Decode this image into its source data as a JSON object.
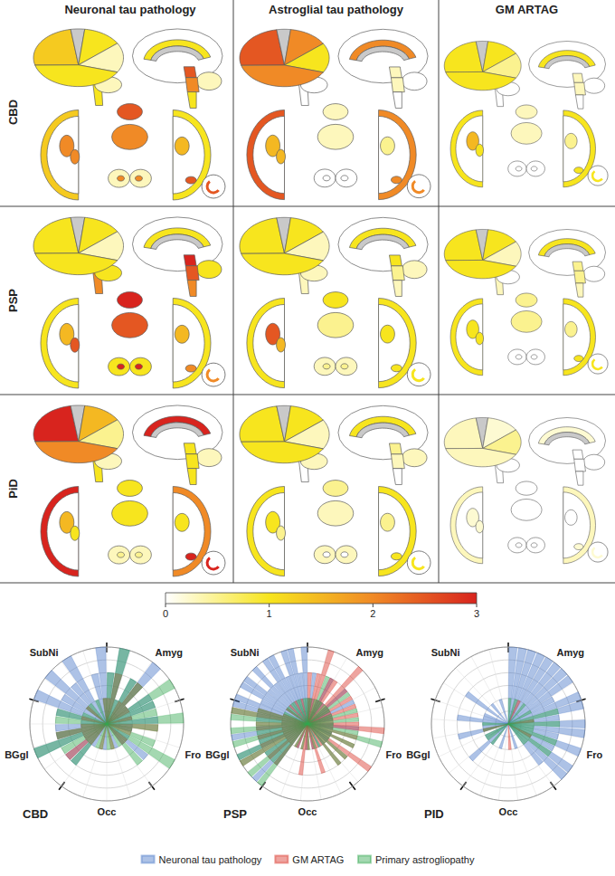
{
  "panel": {
    "row_labels": [
      "CBD",
      "PSP",
      "PiD"
    ],
    "column_labels": [
      "Neuronal tau pathology",
      "Astroglial tau pathology",
      "GM ARTAG"
    ],
    "cells": [
      [
        [
          1.3,
          1,
          1,
          0.3,
          1,
          2,
          2,
          1.5,
          2.5,
          2,
          1,
          0.3,
          2,
          2.5
        ],
        [
          2.5,
          2,
          2,
          1,
          2,
          1.5,
          1.5,
          0.5,
          0.3,
          0.3,
          0,
          0,
          0,
          2
        ],
        [
          1,
          1,
          1,
          0.5,
          1,
          1.5,
          1,
          0.5,
          0.3,
          0.3,
          0,
          0,
          0,
          1
        ]
      ],
      [
        [
          1,
          1,
          1,
          0.3,
          1,
          1.5,
          2.5,
          1.5,
          3,
          2.5,
          2,
          1,
          3,
          2
        ],
        [
          1,
          1,
          1,
          0.3,
          1,
          2.5,
          1.5,
          1,
          1,
          0.5,
          0.3,
          0.3,
          0.5,
          1
        ],
        [
          1,
          1,
          1,
          0.3,
          1,
          1,
          1,
          0.5,
          0.5,
          0.5,
          0.3,
          0,
          0,
          1
        ]
      ],
      [
        [
          3,
          1.5,
          2,
          0.5,
          3,
          1.5,
          1,
          1,
          1,
          1,
          1,
          0.3,
          0.5,
          3
        ],
        [
          1,
          1,
          1,
          0.3,
          1,
          1,
          0.5,
          0.5,
          0.5,
          0.3,
          0,
          0.3,
          0,
          1
        ],
        [
          0.3,
          0.2,
          0.3,
          0.5,
          0.2,
          0.2,
          0.2,
          0,
          0,
          0,
          0,
          0,
          0,
          0.2
        ]
      ]
    ],
    "color_bar": {
      "range": [
        0,
        3
      ],
      "ticks": [
        0,
        1,
        2,
        3
      ]
    }
  },
  "chart_data": [
    {
      "type": "polar_bar",
      "title": "CBD",
      "groups": [
        "Amyg",
        "Fro",
        "Occ",
        "BGgl",
        "SubNi"
      ],
      "rlim": [
        0,
        3
      ],
      "rticks": [
        0,
        0.5,
        1,
        1.5,
        2,
        2.5,
        3
      ],
      "grid": true,
      "tick_labels": false,
      "series": [
        {
          "name": "Neuronal tau pathology",
          "color": "#4a78c8",
          "values": [
            [
              2,
              3,
              1,
              2,
              3,
              1,
              2,
              2
            ],
            [
              1,
              2,
              1,
              1,
              0,
              1,
              2,
              1
            ],
            [
              0,
              1,
              0,
              0,
              1,
              0,
              0,
              1
            ],
            [
              2,
              2,
              1,
              3,
              2,
              2,
              1,
              2
            ],
            [
              3,
              2,
              3,
              2,
              3,
              1,
              2,
              3
            ]
          ]
        },
        {
          "name": "GM ARTAG",
          "color": "#d9352a",
          "values": [
            [
              1,
              2,
              0,
              1,
              2,
              1,
              1,
              0
            ],
            [
              1,
              0,
              2,
              1,
              1,
              0,
              1,
              1
            ],
            [
              0,
              0,
              1,
              0,
              0,
              1,
              0,
              0
            ],
            [
              1,
              2,
              1,
              1,
              2,
              1,
              0,
              1
            ],
            [
              0,
              0,
              1,
              0,
              0,
              0,
              0,
              1
            ]
          ]
        },
        {
          "name": "Primary astrogliopathy",
          "color": "#35a852",
          "values": [
            [
              2,
              3,
              1,
              2,
              2,
              1,
              3,
              2
            ],
            [
              2,
              3,
              2,
              1,
              2,
              3,
              1,
              2
            ],
            [
              1,
              0,
              1,
              1,
              0,
              1,
              1,
              0
            ],
            [
              2,
              1,
              2,
              3,
              2,
              1,
              2,
              2
            ],
            [
              1,
              0,
              1,
              1,
              0,
              1,
              0,
              1
            ]
          ]
        }
      ]
    },
    {
      "type": "polar_bar",
      "title": "PSP",
      "legend": "bottom",
      "groups": [
        "Amyg",
        "Fro",
        "Occ",
        "BGgl",
        "SubNi"
      ],
      "rlim": [
        0,
        3
      ],
      "rticks": [
        0,
        0.5,
        1,
        1.5,
        2,
        2.5,
        3
      ],
      "grid": true,
      "tick_labels": false,
      "series": [
        {
          "name": "Neuronal tau pathology",
          "color": "#4a78c8",
          "values": [
            [
              1,
              2,
              1,
              0,
              1,
              2,
              1,
              1,
              0,
              2,
              1,
              1,
              2,
              1
            ],
            [
              1,
              1,
              0,
              1,
              2,
              1,
              0,
              1,
              1,
              0,
              1,
              1,
              0,
              1
            ],
            [
              0,
              1,
              0,
              0,
              1,
              0,
              0,
              1,
              0,
              0,
              0,
              1,
              0,
              0
            ],
            [
              2,
              3,
              2,
              2,
              1,
              3,
              2,
              2,
              3,
              2,
              1,
              2,
              2,
              3
            ],
            [
              3,
              2,
              3,
              3,
              2,
              3,
              2,
              3,
              3,
              2,
              3,
              3,
              2,
              3
            ]
          ]
        },
        {
          "name": "GM ARTAG",
          "color": "#d9352a",
          "values": [
            [
              2,
              1,
              2,
              3,
              1,
              2,
              2,
              1,
              3,
              2,
              1,
              2,
              1,
              2
            ],
            [
              1,
              2,
              1,
              2,
              3,
              1,
              2,
              1,
              2,
              1,
              3,
              2,
              1,
              2
            ],
            [
              1,
              0,
              1,
              2,
              1,
              0,
              1,
              1,
              2,
              1,
              0,
              1,
              1,
              0
            ],
            [
              2,
              1,
              2,
              1,
              3,
              2,
              1,
              2,
              1,
              2,
              2,
              1,
              3,
              2
            ],
            [
              1,
              0,
              0,
              1,
              0,
              1,
              0,
              0,
              1,
              0,
              0,
              1,
              0,
              0
            ]
          ]
        },
        {
          "name": "Primary astrogliopathy",
          "color": "#35a852",
          "values": [
            [
              1,
              1,
              0,
              1,
              2,
              1,
              1,
              0,
              1,
              1,
              2,
              1,
              0,
              1
            ],
            [
              2,
              1,
              2,
              1,
              1,
              2,
              3,
              1,
              2,
              1,
              1,
              2,
              1,
              2
            ],
            [
              0,
              1,
              0,
              1,
              0,
              0,
              1,
              0,
              0,
              1,
              0,
              0,
              1,
              0
            ],
            [
              3,
              2,
              3,
              2,
              3,
              3,
              2,
              3,
              2,
              3,
              2,
              3,
              3,
              2
            ],
            [
              1,
              1,
              0,
              1,
              1,
              0,
              1,
              1,
              0,
              1,
              1,
              0,
              1,
              1
            ]
          ]
        }
      ]
    },
    {
      "type": "polar_bar",
      "title": "PID",
      "groups": [
        "Amyg",
        "Fro",
        "Occ",
        "BGgl",
        "SubNi"
      ],
      "rlim": [
        0,
        3
      ],
      "rticks": [
        0,
        0.5,
        1,
        1.5,
        2,
        2.5,
        3
      ],
      "grid": true,
      "tick_labels": false,
      "series": [
        {
          "name": "Neuronal tau pathology",
          "color": "#4a78c8",
          "values": [
            [
              3,
              3,
              3,
              3,
              3,
              3,
              3,
              3,
              2,
              3
            ],
            [
              3,
              2,
              3,
              3,
              2,
              3,
              2,
              3,
              3,
              2
            ],
            [
              0,
              0,
              1,
              0,
              0,
              0,
              0,
              1,
              0,
              0
            ],
            [
              1,
              2,
              1,
              1,
              0,
              2,
              1,
              1,
              2,
              1
            ],
            [
              1,
              0,
              2,
              0,
              1,
              0,
              0,
              1,
              0,
              0
            ]
          ]
        },
        {
          "name": "GM ARTAG",
          "color": "#d9352a",
          "values": [
            [
              0,
              0,
              0,
              1,
              0,
              0,
              0,
              0,
              0,
              0
            ],
            [
              0,
              1,
              0,
              0,
              0,
              0,
              1,
              0,
              0,
              0
            ],
            [
              0,
              0,
              0,
              0,
              1,
              0,
              0,
              0,
              0,
              0
            ],
            [
              0,
              0,
              0,
              0,
              0,
              1,
              0,
              0,
              0,
              0
            ],
            [
              0,
              0,
              0,
              0,
              0,
              0,
              0,
              0,
              0,
              0
            ]
          ]
        },
        {
          "name": "Primary astrogliopathy",
          "color": "#35a852",
          "values": [
            [
              1,
              0,
              1,
              0,
              0,
              1,
              0,
              0,
              1,
              0
            ],
            [
              2,
              1,
              2,
              1,
              1,
              2,
              1,
              2,
              1,
              1
            ],
            [
              0,
              0,
              0,
              0,
              0,
              0,
              0,
              0,
              0,
              0
            ],
            [
              1,
              0,
              1,
              1,
              0,
              1,
              0,
              1,
              0,
              0
            ],
            [
              0,
              0,
              0,
              0,
              0,
              0,
              0,
              0,
              0,
              0
            ]
          ]
        }
      ]
    }
  ]
}
